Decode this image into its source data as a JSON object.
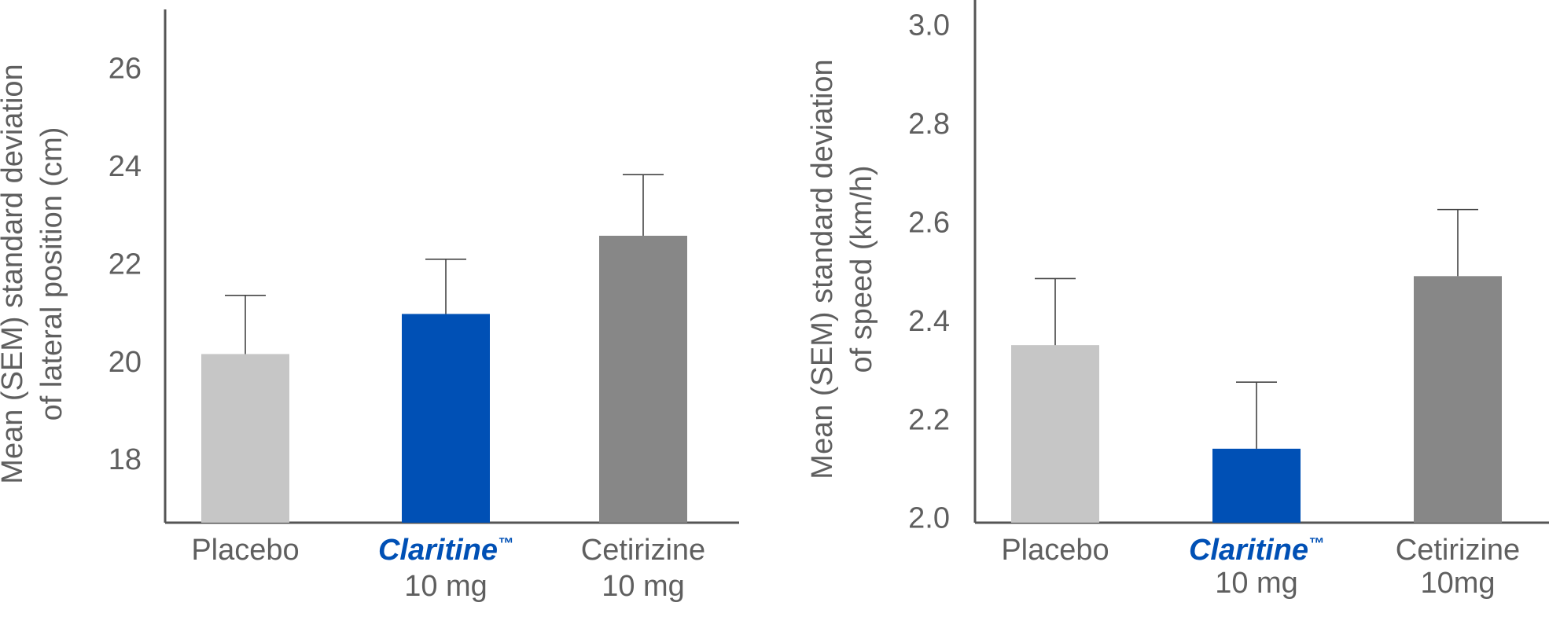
{
  "chart_data": [
    {
      "type": "bar",
      "ylabel": [
        "Mean (SEM) standard deviation",
        "of lateral position (cm)"
      ],
      "ylim": [
        16.7,
        27.2
      ],
      "yticks": [
        18,
        20,
        22,
        24,
        26
      ],
      "grid": false,
      "categories": [
        {
          "label": "Placebo",
          "sublabel": ""
        },
        {
          "label": "Claritine",
          "trademark": "™",
          "sublabel": "10 mg"
        },
        {
          "label": "Cetirizine",
          "sublabel": "10 mg"
        }
      ],
      "values": [
        20.15,
        20.97,
        22.57
      ],
      "errors": [
        1.2,
        1.12,
        1.25
      ],
      "colors": [
        "#c6c6c6",
        "#0050b5",
        "#878787"
      ]
    },
    {
      "type": "bar",
      "ylabel": [
        "Mean (SEM) standard deviation",
        "of speed (km/h)"
      ],
      "ylim": [
        1.99,
        3.05
      ],
      "yticks": [
        "2.0",
        "2.2",
        "2.4",
        "2.6",
        "2.8",
        "3.0"
      ],
      "grid": false,
      "categories": [
        {
          "label": "Placebo",
          "sublabel": ""
        },
        {
          "label": "Claritine",
          "trademark": "™",
          "sublabel": "10 mg"
        },
        {
          "label": "Cetirizine",
          "sublabel": "10mg"
        }
      ],
      "values": [
        2.35,
        2.14,
        2.49
      ],
      "errors": [
        0.135,
        0.135,
        0.135
      ],
      "colors": [
        "#c6c6c6",
        "#0050b5",
        "#878787"
      ]
    }
  ]
}
